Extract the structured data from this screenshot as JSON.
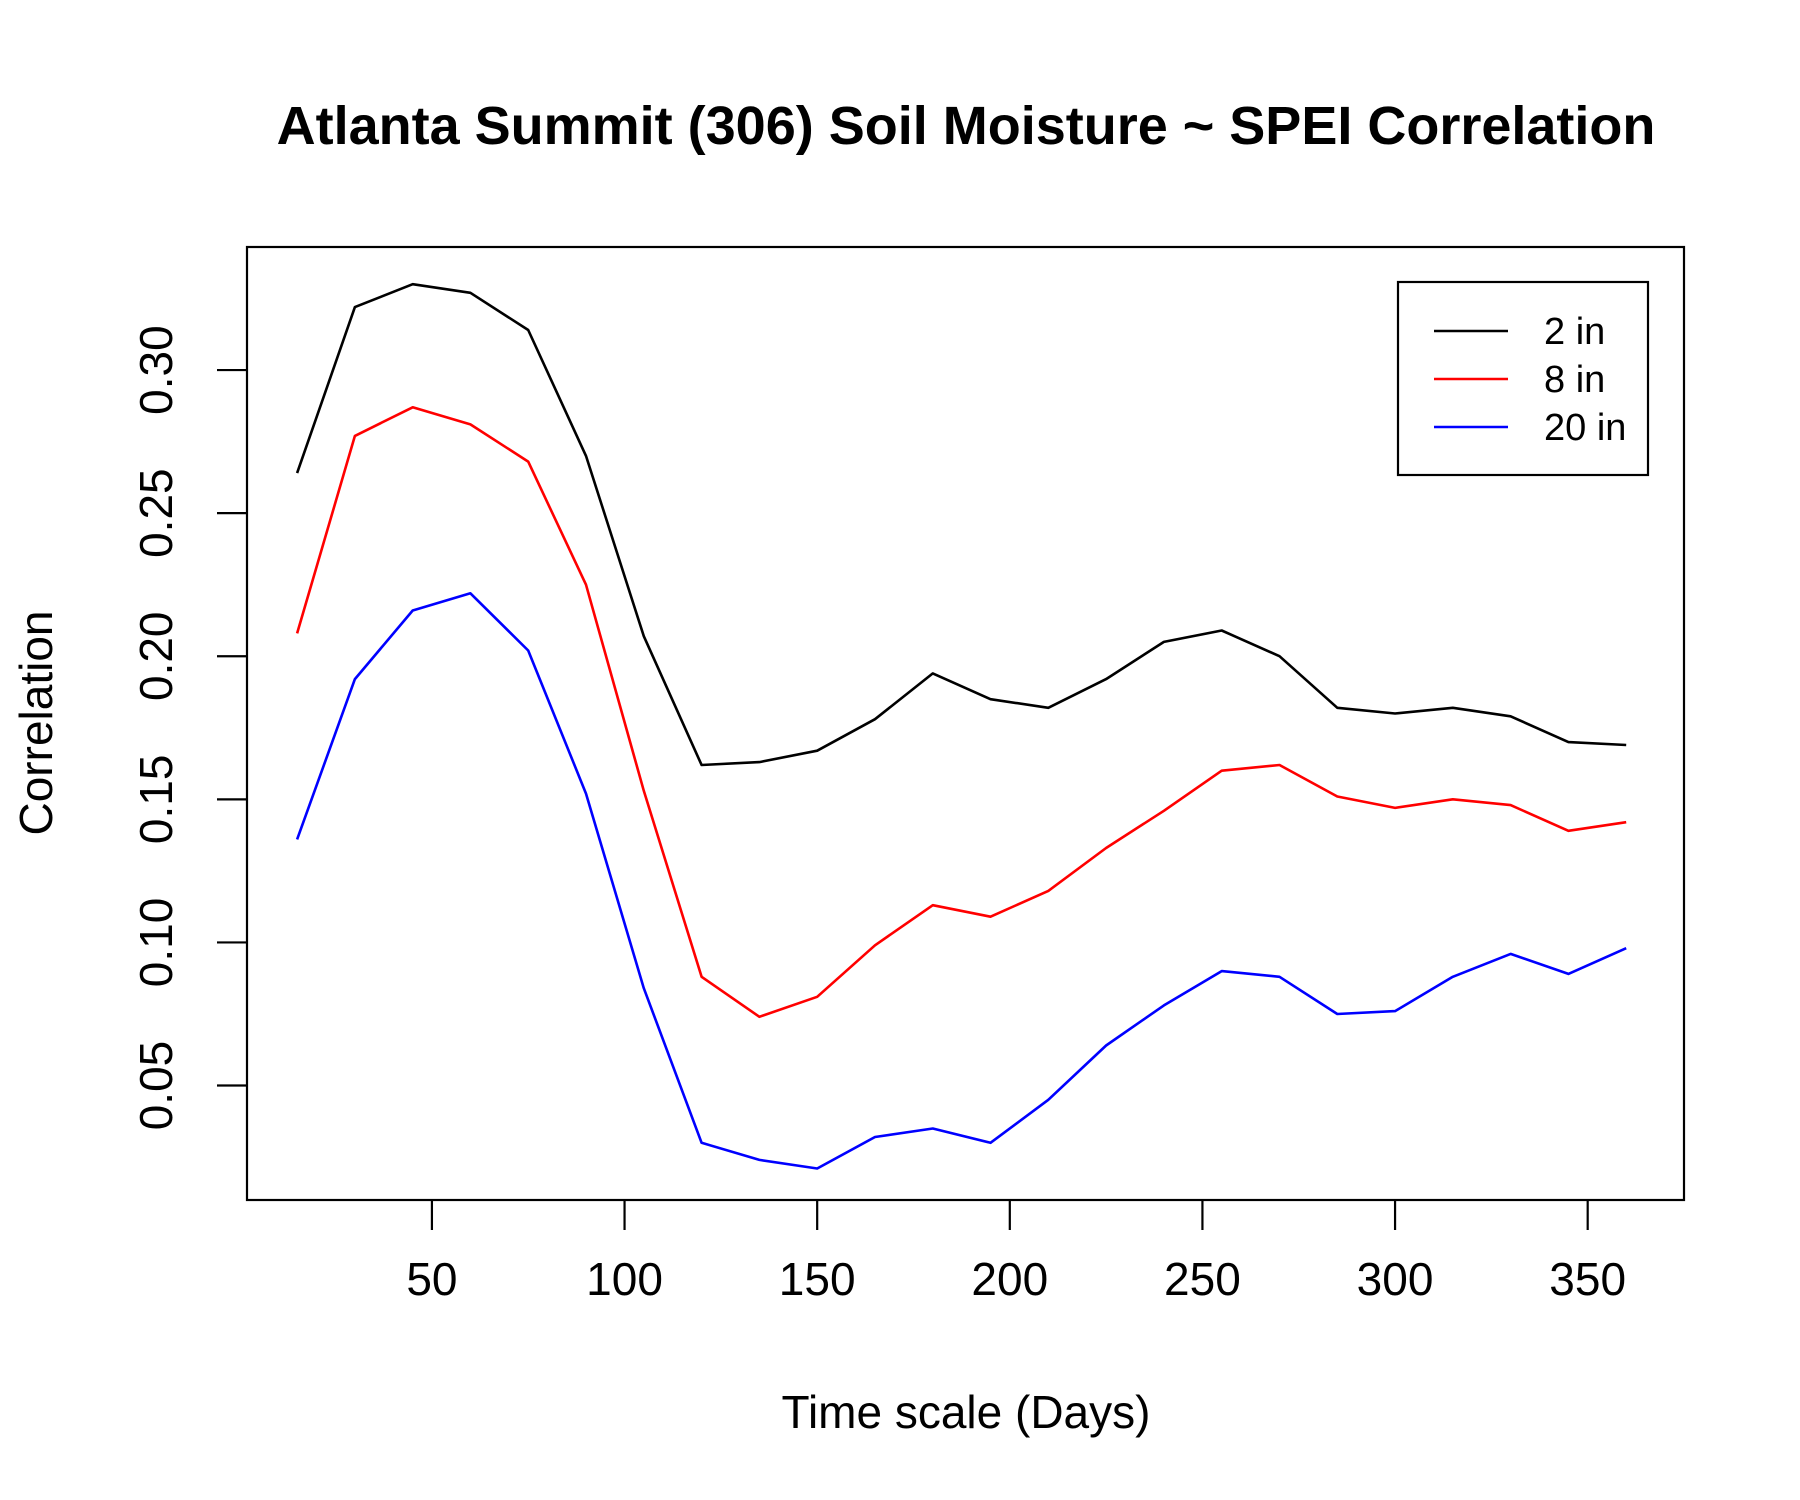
{
  "chart_data": {
    "type": "line",
    "title": "Atlanta Summit (306) Soil Moisture ~ SPEI Correlation",
    "xlabel": "Time scale (Days)",
    "ylabel": "Correlation",
    "xlim": [
      2,
      375
    ],
    "ylim": [
      0.01,
      0.343
    ],
    "x_ticks": [
      50,
      100,
      150,
      200,
      250,
      300,
      350
    ],
    "y_ticks": [
      0.05,
      0.1,
      0.15,
      0.2,
      0.25,
      0.3
    ],
    "x_tick_labels": [
      "50",
      "100",
      "150",
      "200",
      "250",
      "300",
      "350"
    ],
    "y_tick_labels": [
      "0.05",
      "0.10",
      "0.15",
      "0.20",
      "0.25",
      "0.30"
    ],
    "legend_position": "top-right",
    "x": [
      15,
      30,
      45,
      60,
      75,
      90,
      105,
      120,
      135,
      150,
      165,
      180,
      195,
      210,
      225,
      240,
      255,
      270,
      285,
      300,
      315,
      330,
      345,
      360
    ],
    "series": [
      {
        "name": "2 in",
        "color": "#000000",
        "values": [
          0.264,
          0.322,
          0.33,
          0.327,
          0.314,
          0.27,
          0.207,
          0.162,
          0.163,
          0.167,
          0.178,
          0.194,
          0.185,
          0.182,
          0.192,
          0.205,
          0.209,
          0.2,
          0.182,
          0.18,
          0.182,
          0.179,
          0.17,
          0.169
        ]
      },
      {
        "name": "8 in",
        "color": "#ff0000",
        "values": [
          0.208,
          0.277,
          0.287,
          0.281,
          0.268,
          0.225,
          0.153,
          0.088,
          0.074,
          0.081,
          0.099,
          0.113,
          0.109,
          0.118,
          0.133,
          0.146,
          0.16,
          0.162,
          0.151,
          0.147,
          0.15,
          0.148,
          0.139,
          0.142
        ]
      },
      {
        "name": "20 in",
        "color": "#0000ff",
        "values": [
          0.136,
          0.192,
          0.216,
          0.222,
          0.202,
          0.152,
          0.084,
          0.03,
          0.024,
          0.021,
          0.032,
          0.035,
          0.03,
          0.045,
          0.064,
          0.078,
          0.09,
          0.088,
          0.075,
          0.076,
          0.088,
          0.096,
          0.089,
          0.098
        ]
      }
    ]
  }
}
